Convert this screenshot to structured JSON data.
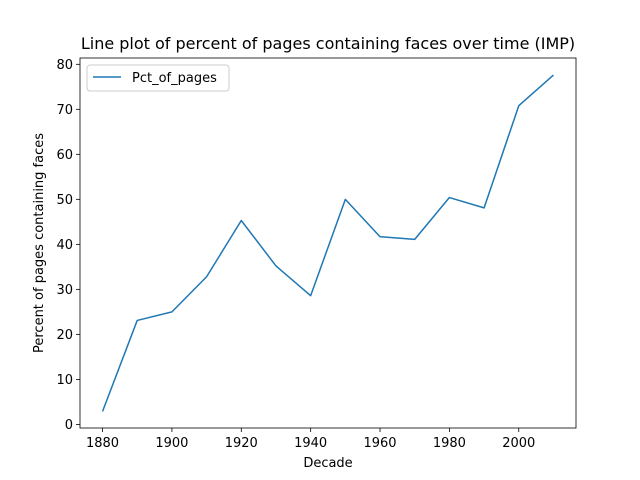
{
  "chart_data": {
    "type": "line",
    "title": "Line plot of percent of pages containing faces over time (IMP)",
    "xlabel": "Decade",
    "ylabel": "Percent of pages containing faces",
    "x": [
      1880,
      1890,
      1900,
      1910,
      1920,
      1930,
      1940,
      1950,
      1960,
      1970,
      1980,
      1990,
      2000,
      2010
    ],
    "series": [
      {
        "name": "Pct_of_pages",
        "color": "#1f77b4",
        "values": [
          2.9,
          23.1,
          25.0,
          32.8,
          45.3,
          35.2,
          28.6,
          50.0,
          41.7,
          41.1,
          50.4,
          48.1,
          70.8,
          77.6
        ]
      }
    ],
    "xticks": [
      1880,
      1900,
      1920,
      1940,
      1960,
      1980,
      2000
    ],
    "yticks": [
      0,
      10,
      20,
      30,
      40,
      50,
      60,
      70,
      80
    ],
    "xlim": [
      1873.5,
      2016.5
    ],
    "ylim": [
      -0.8,
      81.4
    ],
    "grid": false,
    "legend_position": "top-left"
  }
}
